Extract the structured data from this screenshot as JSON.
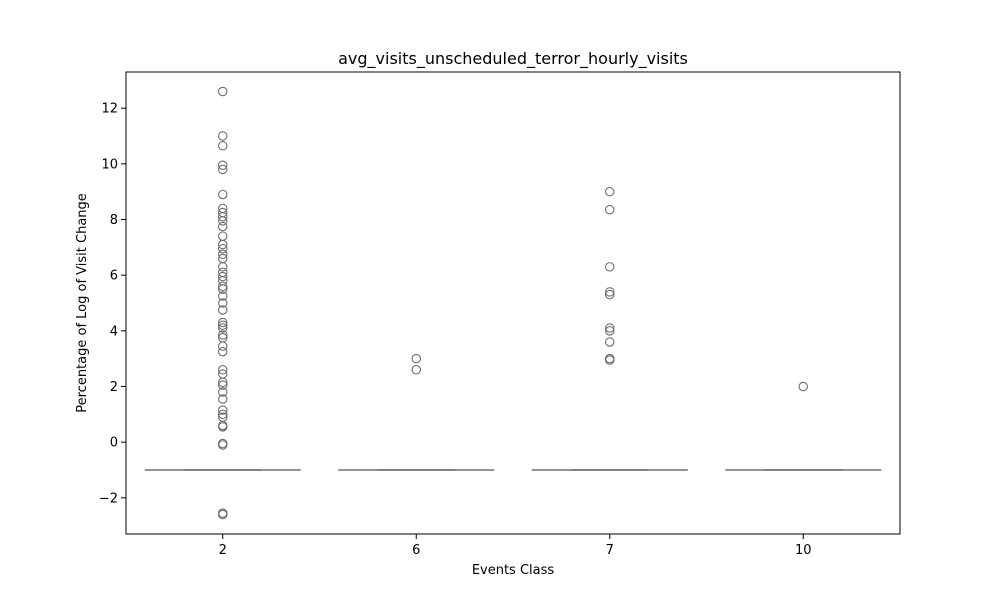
{
  "chart_data": {
    "type": "box",
    "title": "avg_visits_unscheduled_terror_hourly_visits",
    "xlabel": "Events Class",
    "ylabel": "Percentage of Log of Visit Change",
    "categories": [
      "2",
      "6",
      "7",
      "10"
    ],
    "ylim": [
      -3.3,
      13.3
    ],
    "yticks": [
      -2,
      0,
      2,
      4,
      6,
      8,
      10,
      12
    ],
    "ytick_labels": [
      "−2",
      "0",
      "2",
      "4",
      "6",
      "8",
      "10",
      "12"
    ],
    "grid": false,
    "box_color": "#ffffff",
    "line_color": "#6e6e6e",
    "boxes": [
      {
        "category": "2",
        "q1": -1.0,
        "median": -1.0,
        "q3": -1.0,
        "whisker_low": -1.0,
        "whisker_high": -1.0,
        "outliers": [
          12.6,
          11.0,
          10.65,
          9.95,
          9.8,
          8.9,
          8.4,
          8.25,
          8.1,
          7.95,
          7.75,
          7.4,
          7.1,
          6.95,
          6.75,
          6.6,
          6.3,
          6.1,
          5.95,
          5.8,
          5.6,
          5.5,
          5.25,
          5.0,
          4.75,
          4.3,
          4.2,
          4.1,
          3.85,
          3.75,
          3.45,
          3.25,
          2.6,
          2.45,
          2.15,
          2.05,
          1.8,
          1.55,
          1.15,
          1.0,
          0.9,
          0.6,
          0.55,
          -0.05,
          -0.1,
          -2.55,
          -2.6
        ]
      },
      {
        "category": "6",
        "q1": -1.0,
        "median": -1.0,
        "q3": -1.0,
        "whisker_low": -1.0,
        "whisker_high": -1.0,
        "outliers": [
          3.0,
          2.6
        ]
      },
      {
        "category": "7",
        "q1": -1.0,
        "median": -1.0,
        "q3": -1.0,
        "whisker_low": -1.0,
        "whisker_high": -1.0,
        "outliers": [
          9.0,
          8.35,
          6.3,
          5.4,
          5.3,
          4.1,
          4.0,
          3.6,
          3.0,
          2.95
        ]
      },
      {
        "category": "10",
        "q1": -1.0,
        "median": -1.0,
        "q3": -1.0,
        "whisker_low": -1.0,
        "whisker_high": -1.0,
        "outliers": [
          2.0
        ]
      }
    ]
  }
}
